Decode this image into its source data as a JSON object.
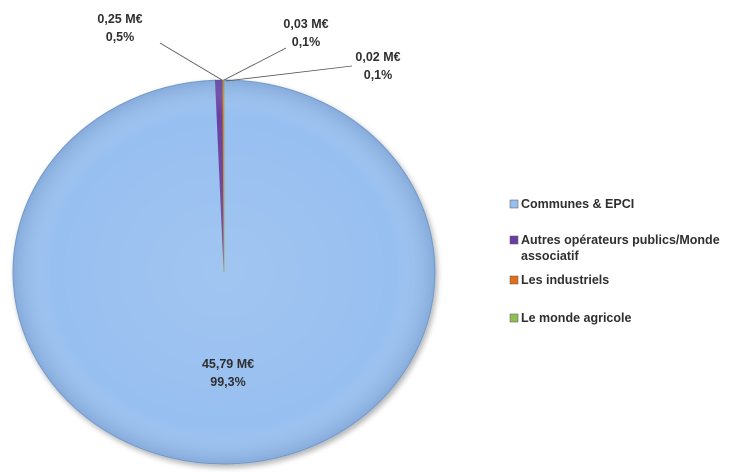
{
  "chart_data": {
    "type": "pie",
    "title": "",
    "unit": "M€",
    "slices": [
      {
        "label": "Communes & EPCI",
        "value": 45.79,
        "value_text": "45,79 M€",
        "percent_text": "99,3%",
        "color": "#97bff0"
      },
      {
        "label": "Autres opérateurs publics/Monde associatif",
        "value": 0.25,
        "value_text": "0,25 M€",
        "percent_text": "0,5%",
        "color": "#6b3fa0"
      },
      {
        "label": "Les industriels",
        "value": 0.03,
        "value_text": "0,03 M€",
        "percent_text": "0,1%",
        "color": "#e0701e"
      },
      {
        "label": "Le monde agricole",
        "value": 0.02,
        "value_text": "0,02 M€",
        "percent_text": "0,1%",
        "color": "#8cc152"
      }
    ],
    "legend": {
      "position": "right",
      "entries": [
        [
          "Communes & EPCI"
        ],
        [
          "Autres opérateurs publics/Monde",
          "associatif"
        ],
        [
          "Les industriels"
        ],
        [
          "Le monde agricole"
        ]
      ]
    }
  }
}
